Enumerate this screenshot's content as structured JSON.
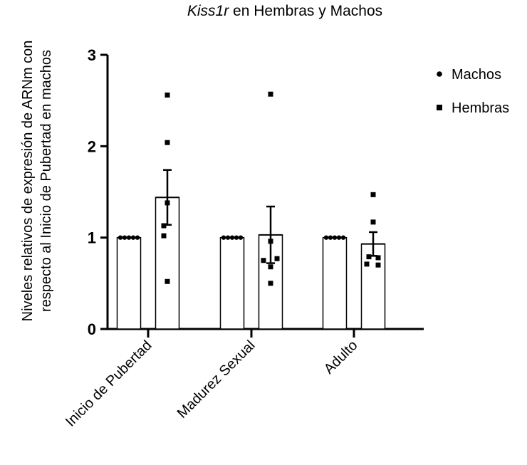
{
  "chart_data": {
    "type": "bar",
    "title_italic": "Kiss1r",
    "title_rest": " en Hembras y Machos",
    "ylabel_line1": "Niveles relativos de expresión de ARNm con",
    "ylabel_line2": "respecto al Inicio de Pubertad en machos",
    "xlabel": "",
    "ylim": [
      0,
      3
    ],
    "yticks": [
      "0",
      "1",
      "2",
      "3"
    ],
    "categories": [
      "Inicio de Pubertad",
      "Madurez Sexual",
      "Adulto"
    ],
    "legend_position": "right",
    "series": [
      {
        "name": "Machos",
        "marker": "circle",
        "means": [
          1.0,
          1.0,
          1.0
        ],
        "sem": [
          0.0,
          0.0,
          0.0
        ],
        "points": [
          [
            1.0,
            1.0,
            1.0,
            1.0,
            1.0
          ],
          [
            1.0,
            1.0,
            1.0,
            1.0,
            1.0
          ],
          [
            1.0,
            1.0,
            1.0,
            1.0,
            1.0
          ]
        ]
      },
      {
        "name": "Hembras",
        "marker": "square",
        "means": [
          1.44,
          1.03,
          0.93
        ],
        "sem": [
          0.3,
          0.31,
          0.13
        ],
        "points": [
          [
            2.56,
            2.04,
            1.38,
            1.13,
            1.02,
            0.52
          ],
          [
            2.57,
            0.96,
            0.77,
            0.75,
            0.68,
            0.5
          ],
          [
            1.47,
            1.17,
            0.79,
            0.78,
            0.71,
            0.7
          ]
        ]
      }
    ]
  }
}
